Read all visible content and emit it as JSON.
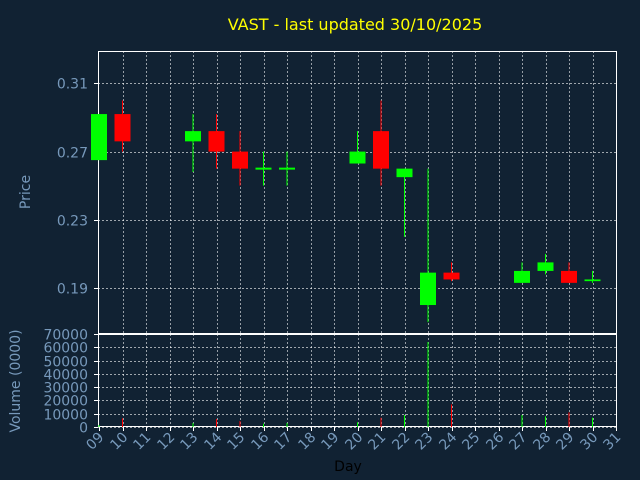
{
  "chart_data": {
    "type": "candlestick",
    "title": "VAST - last updated 30/10/2025",
    "xlabel": "Day",
    "x_tick_labels": [
      "09",
      "10",
      "11",
      "12",
      "13",
      "14",
      "15",
      "16",
      "17",
      "18",
      "19",
      "20",
      "21",
      "22",
      "23",
      "24",
      "25",
      "26",
      "27",
      "28",
      "29",
      "30",
      "31"
    ],
    "price_panel": {
      "ylabel": "Price",
      "ylim": [
        0.163,
        0.329
      ],
      "y_ticks": [
        "0.31",
        "0.27",
        "0.23",
        "0.19"
      ],
      "y_tick_values": [
        0.31,
        0.27,
        0.23,
        0.19
      ],
      "grid": true
    },
    "volume_panel": {
      "ylabel": "Volume (0000)",
      "ylim": [
        0,
        70000
      ],
      "y_ticks": [
        "70000",
        "60000",
        "50000",
        "40000",
        "30000",
        "20000",
        "10000",
        "0"
      ],
      "y_tick_values": [
        70000,
        60000,
        50000,
        40000,
        30000,
        20000,
        10000,
        0
      ],
      "grid": true
    },
    "colors": {
      "background": "#112233",
      "up": "#00ff00",
      "down": "#ff0000",
      "title": "#ffff00",
      "axis": "#7799bb",
      "grid": "#ffffff",
      "flat": "#00ff00"
    },
    "candles": [
      {
        "day": 9,
        "open": 0.265,
        "high": 0.292,
        "low": 0.265,
        "close": 0.292,
        "volume": 1500
      },
      {
        "day": 10,
        "open": 0.292,
        "high": 0.3,
        "low": 0.27,
        "close": 0.276,
        "volume": 6500
      },
      {
        "day": 13,
        "open": 0.276,
        "high": 0.292,
        "low": 0.258,
        "close": 0.282,
        "volume": 3000
      },
      {
        "day": 14,
        "open": 0.282,
        "high": 0.292,
        "low": 0.26,
        "close": 0.27,
        "volume": 6000
      },
      {
        "day": 15,
        "open": 0.27,
        "high": 0.282,
        "low": 0.25,
        "close": 0.26,
        "volume": 4500
      },
      {
        "day": 16,
        "open": 0.26,
        "high": 0.27,
        "low": 0.25,
        "close": 0.26,
        "volume": 2500
      },
      {
        "day": 17,
        "open": 0.26,
        "high": 0.27,
        "low": 0.25,
        "close": 0.26,
        "volume": 3000
      },
      {
        "day": 20,
        "open": 0.263,
        "high": 0.282,
        "low": 0.263,
        "close": 0.27,
        "volume": 3500
      },
      {
        "day": 21,
        "open": 0.282,
        "high": 0.3,
        "low": 0.25,
        "close": 0.26,
        "volume": 7000
      },
      {
        "day": 22,
        "open": 0.255,
        "high": 0.26,
        "low": 0.22,
        "close": 0.26,
        "volume": 9000
      },
      {
        "day": 23,
        "open": 0.18,
        "high": 0.26,
        "low": 0.17,
        "close": 0.199,
        "volume": 64000
      },
      {
        "day": 24,
        "open": 0.199,
        "high": 0.205,
        "low": 0.194,
        "close": 0.195,
        "volume": 17000
      },
      {
        "day": 27,
        "open": 0.193,
        "high": 0.205,
        "low": 0.193,
        "close": 0.2,
        "volume": 9000
      },
      {
        "day": 28,
        "open": 0.2,
        "high": 0.21,
        "low": 0.198,
        "close": 0.205,
        "volume": 8000
      },
      {
        "day": 29,
        "open": 0.2,
        "high": 0.205,
        "low": 0.193,
        "close": 0.193,
        "volume": 11000
      },
      {
        "day": 30,
        "open": 0.194,
        "high": 0.2,
        "low": 0.193,
        "close": 0.195,
        "volume": 7000
      }
    ]
  }
}
